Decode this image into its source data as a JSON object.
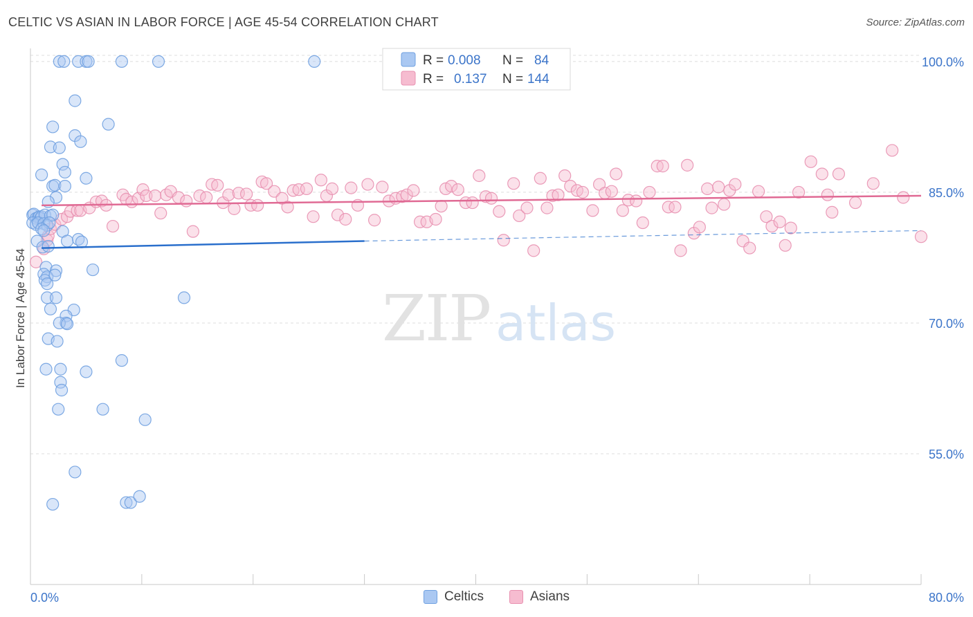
{
  "title": "CELTIC VS ASIAN IN LABOR FORCE | AGE 45-54 CORRELATION CHART",
  "source": "Source: ZipAtlas.com",
  "watermark": {
    "zip": "ZIP",
    "atlas": "atlas"
  },
  "chart_data": {
    "type": "scatter",
    "xlabel": "",
    "ylabel": "In Labor Force | Age 45-54",
    "xlim": [
      0,
      80
    ],
    "ylim": [
      40,
      101.5
    ],
    "x_tick_labels": [
      "0.0%",
      "80.0%"
    ],
    "y_ticks": [
      55,
      70,
      85,
      100
    ],
    "y_tick_labels": [
      "55.0%",
      "70.0%",
      "85.0%",
      "100.0%"
    ],
    "grid": true,
    "legend_position": "top-center",
    "series": [
      {
        "name": "Celtics",
        "color": "#6fa0e0",
        "fill": "#aac8f2",
        "trend_color": "#2a6fcc",
        "stats": {
          "r_label": "R =",
          "r_value": "0.008",
          "n_label": "N =",
          "n_value": "84"
        },
        "trend": {
          "x0": 1.0,
          "y0": 78.6,
          "x1": 30.0,
          "y1": 79.4,
          "x_dash_end": 80.0,
          "y_dash_end": 80.6
        },
        "points": [
          [
            2.6,
            100
          ],
          [
            3.0,
            100
          ],
          [
            4.3,
            100
          ],
          [
            5.0,
            100
          ],
          [
            5.2,
            100
          ],
          [
            8.2,
            100
          ],
          [
            11.5,
            100
          ],
          [
            25.5,
            100
          ],
          [
            4.0,
            95.5
          ],
          [
            7.0,
            92.8
          ],
          [
            2.0,
            92.5
          ],
          [
            4.0,
            91.5
          ],
          [
            4.5,
            90.8
          ],
          [
            1.8,
            90.2
          ],
          [
            2.6,
            90.1
          ],
          [
            2.9,
            88.2
          ],
          [
            3.1,
            87.3
          ],
          [
            5.0,
            86.6
          ],
          [
            1.0,
            87.0
          ],
          [
            2.0,
            85.7
          ],
          [
            2.2,
            85.8
          ],
          [
            3.1,
            85.7
          ],
          [
            2.3,
            84.4
          ],
          [
            1.6,
            83.9
          ],
          [
            0.2,
            82.4
          ],
          [
            0.3,
            82.5
          ],
          [
            0.5,
            82.0
          ],
          [
            0.7,
            82.1
          ],
          [
            0.8,
            82.2
          ],
          [
            0.9,
            82.0
          ],
          [
            1.0,
            82.2
          ],
          [
            1.3,
            82.4
          ],
          [
            1.8,
            82.3
          ],
          [
            2.0,
            82.4
          ],
          [
            0.2,
            81.5
          ],
          [
            0.5,
            81.3
          ],
          [
            0.7,
            81.5
          ],
          [
            1.2,
            81.4
          ],
          [
            1.5,
            81.2
          ],
          [
            1.7,
            81.5
          ],
          [
            1.0,
            80.8
          ],
          [
            1.2,
            80.6
          ],
          [
            2.9,
            80.5
          ],
          [
            0.6,
            79.4
          ],
          [
            3.3,
            79.4
          ],
          [
            4.3,
            79.6
          ],
          [
            4.6,
            79.3
          ],
          [
            1.1,
            78.7
          ],
          [
            1.6,
            78.8
          ],
          [
            1.4,
            76.4
          ],
          [
            2.3,
            76.0
          ],
          [
            5.6,
            76.1
          ],
          [
            1.2,
            75.6
          ],
          [
            1.5,
            75.3
          ],
          [
            2.2,
            75.5
          ],
          [
            1.3,
            74.9
          ],
          [
            1.5,
            74.5
          ],
          [
            1.5,
            72.9
          ],
          [
            2.3,
            72.9
          ],
          [
            13.8,
            72.9
          ],
          [
            1.8,
            71.6
          ],
          [
            3.9,
            71.5
          ],
          [
            3.2,
            70.8
          ],
          [
            3.2,
            70.0
          ],
          [
            2.6,
            70.0
          ],
          [
            3.3,
            69.9
          ],
          [
            1.6,
            68.2
          ],
          [
            2.4,
            67.9
          ],
          [
            8.2,
            65.7
          ],
          [
            1.4,
            64.7
          ],
          [
            2.7,
            64.7
          ],
          [
            5.0,
            64.4
          ],
          [
            2.7,
            63.2
          ],
          [
            2.8,
            62.3
          ],
          [
            2.5,
            60.1
          ],
          [
            6.5,
            60.1
          ],
          [
            10.3,
            58.9
          ],
          [
            4.0,
            52.9
          ],
          [
            2.0,
            49.2
          ],
          [
            8.6,
            49.4
          ],
          [
            9.0,
            49.4
          ],
          [
            9.8,
            50.1
          ]
        ]
      },
      {
        "name": "Asians",
        "color": "#e890b0",
        "fill": "#f6bcd0",
        "trend_color": "#e06a94",
        "stats": {
          "r_label": "R =",
          "r_value": "0.137",
          "n_label": "N =",
          "n_value": "144"
        },
        "trend": {
          "x0": 1.0,
          "y0": 83.5,
          "x1": 80.0,
          "y1": 84.6
        },
        "points": [
          [
            0.5,
            77.0
          ],
          [
            1.2,
            78.5
          ],
          [
            1.5,
            79.5
          ],
          [
            1.6,
            80.0
          ],
          [
            1.8,
            80.8
          ],
          [
            2.2,
            81.3
          ],
          [
            2.8,
            81.9
          ],
          [
            3.3,
            82.2
          ],
          [
            3.6,
            82.8
          ],
          [
            4.2,
            82.9
          ],
          [
            4.5,
            82.9
          ],
          [
            5.3,
            83.2
          ],
          [
            5.9,
            83.9
          ],
          [
            6.4,
            84.0
          ],
          [
            6.8,
            83.5
          ],
          [
            7.4,
            81.1
          ],
          [
            8.3,
            84.7
          ],
          [
            8.6,
            84.2
          ],
          [
            9.1,
            83.9
          ],
          [
            9.7,
            84.3
          ],
          [
            10.1,
            85.3
          ],
          [
            10.4,
            84.6
          ],
          [
            11.2,
            84.6
          ],
          [
            11.7,
            82.6
          ],
          [
            12.2,
            84.7
          ],
          [
            12.6,
            85.1
          ],
          [
            13.3,
            84.4
          ],
          [
            14.0,
            84.0
          ],
          [
            14.6,
            80.5
          ],
          [
            15.2,
            84.6
          ],
          [
            15.8,
            84.4
          ],
          [
            16.3,
            85.9
          ],
          [
            16.8,
            85.8
          ],
          [
            17.3,
            83.8
          ],
          [
            17.8,
            84.7
          ],
          [
            18.3,
            83.1
          ],
          [
            18.7,
            84.9
          ],
          [
            19.4,
            84.8
          ],
          [
            19.8,
            83.5
          ],
          [
            20.4,
            83.5
          ],
          [
            20.8,
            86.2
          ],
          [
            21.2,
            86.0
          ],
          [
            21.9,
            85.1
          ],
          [
            22.6,
            84.3
          ],
          [
            23.1,
            83.3
          ],
          [
            23.6,
            85.2
          ],
          [
            24.1,
            85.3
          ],
          [
            24.8,
            85.4
          ],
          [
            25.4,
            82.2
          ],
          [
            26.1,
            86.4
          ],
          [
            26.6,
            84.6
          ],
          [
            27.1,
            85.4
          ],
          [
            27.6,
            82.4
          ],
          [
            28.3,
            81.9
          ],
          [
            28.8,
            85.5
          ],
          [
            29.4,
            83.5
          ],
          [
            30.3,
            85.9
          ],
          [
            30.9,
            81.8
          ],
          [
            31.6,
            85.6
          ],
          [
            32.2,
            84.0
          ],
          [
            32.8,
            84.3
          ],
          [
            33.4,
            84.5
          ],
          [
            33.8,
            84.7
          ],
          [
            34.4,
            85.2
          ],
          [
            35.0,
            81.6
          ],
          [
            35.6,
            81.6
          ],
          [
            36.4,
            81.9
          ],
          [
            36.9,
            83.4
          ],
          [
            37.3,
            85.4
          ],
          [
            37.8,
            85.7
          ],
          [
            38.4,
            85.3
          ],
          [
            39.1,
            83.8
          ],
          [
            39.7,
            83.8
          ],
          [
            40.3,
            86.9
          ],
          [
            40.9,
            84.5
          ],
          [
            41.4,
            84.3
          ],
          [
            42.1,
            82.8
          ],
          [
            42.5,
            79.5
          ],
          [
            43.4,
            86.0
          ],
          [
            43.9,
            82.3
          ],
          [
            44.6,
            83.2
          ],
          [
            45.2,
            78.3
          ],
          [
            45.8,
            86.6
          ],
          [
            46.4,
            83.2
          ],
          [
            46.9,
            84.6
          ],
          [
            47.4,
            84.7
          ],
          [
            48.0,
            86.9
          ],
          [
            48.5,
            85.7
          ],
          [
            49.1,
            85.2
          ],
          [
            49.6,
            85.0
          ],
          [
            50.5,
            82.9
          ],
          [
            51.1,
            85.9
          ],
          [
            51.6,
            84.9
          ],
          [
            52.2,
            85.1
          ],
          [
            52.6,
            87.1
          ],
          [
            53.2,
            82.9
          ],
          [
            53.7,
            84.1
          ],
          [
            54.4,
            84.0
          ],
          [
            55.0,
            81.5
          ],
          [
            55.6,
            85.0
          ],
          [
            56.3,
            88.0
          ],
          [
            56.8,
            88.0
          ],
          [
            57.3,
            83.3
          ],
          [
            57.9,
            83.3
          ],
          [
            58.4,
            78.3
          ],
          [
            59.0,
            88.1
          ],
          [
            59.6,
            80.3
          ],
          [
            60.1,
            81.0
          ],
          [
            60.8,
            85.4
          ],
          [
            61.2,
            83.2
          ],
          [
            61.8,
            85.6
          ],
          [
            62.3,
            83.6
          ],
          [
            62.8,
            85.2
          ],
          [
            63.3,
            85.9
          ],
          [
            64.0,
            79.4
          ],
          [
            64.6,
            78.6
          ],
          [
            65.4,
            85.1
          ],
          [
            66.1,
            82.2
          ],
          [
            66.6,
            81.1
          ],
          [
            67.3,
            81.6
          ],
          [
            67.8,
            78.9
          ],
          [
            68.3,
            80.9
          ],
          [
            69.0,
            85.0
          ],
          [
            70.1,
            88.5
          ],
          [
            71.1,
            87.1
          ],
          [
            71.6,
            84.7
          ],
          [
            72.0,
            82.7
          ],
          [
            72.6,
            87.1
          ],
          [
            74.1,
            83.8
          ],
          [
            75.7,
            86.0
          ],
          [
            77.4,
            89.8
          ],
          [
            78.4,
            84.4
          ],
          [
            80.0,
            79.9
          ]
        ]
      }
    ]
  }
}
